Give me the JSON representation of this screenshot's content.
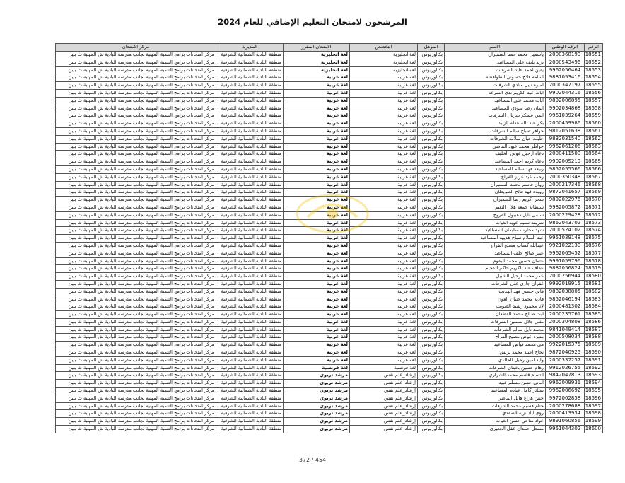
{
  "title": "المرشحون لامتحان التعليم الإضافي للعام 2024",
  "page_number": "372 / 454",
  "watermark": {
    "icon": "logo-watermark",
    "color": "#f2c200"
  },
  "table": {
    "headers": [
      "الرقم",
      "الرقم الوطني",
      "الاسم",
      "المؤهل",
      "التخصص",
      "الامتحان المقرر",
      "المديرية",
      "مركز الامتحان"
    ],
    "rows": [
      {
        "no": "18551",
        "nid": "2000368190",
        "name": "ياسمين محمد حمد السميران",
        "qual": "بكالوريوس",
        "spec": "لغة انجليزية",
        "exam": "لغة انجليزية",
        "dir": "منطقة البادية الشمالية الشرقية",
        "center": "مركز امتحانات برامج التنمية المهنية بجانب مدرسة البادية ش المهنية ث بنين"
      },
      {
        "no": "18552",
        "nid": "2000543496",
        "name": "يزيد نايف علي المساعيد",
        "qual": "بكالوريوس",
        "spec": "لغة انجليزية",
        "exam": "لغة انجليزية",
        "dir": "منطقة البادية الشمالية الشرقية",
        "center": "مركز امتحانات برامج التنمية المهنية بجانب مدرسة البادية ش المهنية ث بنين"
      },
      {
        "no": "18553",
        "nid": "9962056464",
        "name": "يقين احمد عايد الشرفات",
        "qual": "بكالوريوس",
        "spec": "لغة انجليزية",
        "exam": "لغة انجليزية",
        "dir": "منطقة البادية الشمالية الشرقية",
        "center": "مركز امتحانات برامج التنمية المهنية بجانب مدرسة البادية ش المهنية ث بنين"
      },
      {
        "no": "18554",
        "nid": "9881053416",
        "name": "اسامه فلاح حسوني الطواقشه",
        "qual": "بكالوريوس",
        "spec": "لغة عربية",
        "exam": "لغة عربية",
        "dir": "منطقة البادية الشمالية الشرقية",
        "center": "مركز امتحانات برامج التنمية المهنية بجانب مدرسة البادية ش المهنية ث بنين"
      },
      {
        "no": "18555",
        "nid": "2000347197",
        "name": "اميره نايل منادي الشرفات",
        "qual": "بكالوريوس",
        "spec": "لغة عربية",
        "exam": "لغة عربية",
        "dir": "منطقة البادية الشمالية الشرقية",
        "center": "مركز امتحانات برامج التنمية المهنية بجانب مدرسة البادية ش المهنية ث بنين"
      },
      {
        "no": "18556",
        "nid": "9902044316",
        "name": "ايات عبد الكريم ندى الشرعه",
        "qual": "بكالوريوس",
        "spec": "لغة عربية",
        "exam": "لغة عربية",
        "dir": "منطقة البادية الشمالية الشرقية",
        "center": "مركز امتحانات برامج التنمية المهنية بجانب مدرسة البادية ش المهنية ث بنين"
      },
      {
        "no": "18557",
        "nid": "9892006895",
        "name": "ايات محمد علي المساعيد",
        "qual": "بكالوريوس",
        "spec": "لغة عربية",
        "exam": "لغة عربية",
        "dir": "منطقة البادية الشمالية الشرقية",
        "center": "مركز امتحانات برامج التنمية المهنية بجانب مدرسة البادية ش المهنية ث بنين"
      },
      {
        "no": "18558",
        "nid": "9902034868",
        "name": "ايمان رضا سودي المساعيد",
        "qual": "بكالوريوس",
        "spec": "لغة عربية",
        "exam": "لغة عربية",
        "dir": "منطقة البادية الشمالية الشرقية",
        "center": "مركز امتحانات برامج التنمية المهنية بجانب مدرسة البادية ش المهنية ث بنين"
      },
      {
        "no": "18559",
        "nid": "9961039264",
        "name": "ايمن عسكر شربان الشرفات",
        "qual": "بكالوريوس",
        "spec": "لغة عربية",
        "exam": "لغة عربية",
        "dir": "منطقة البادية الشمالية الشرقية",
        "center": "مركز امتحانات برامج التنمية المهنية بجانب مدرسة البادية ش المهنية ث بنين"
      },
      {
        "no": "18560",
        "nid": "2000459986",
        "name": "بكر عبد الله عقله الزبيد",
        "qual": "بكالوريوس",
        "spec": "لغة عربية",
        "exam": "لغة عربية",
        "dir": "منطقة البادية الشمالية الشرقية",
        "center": "مركز امتحانات برامج التنمية المهنية بجانب مدرسة البادية ش المهنية ث بنين"
      },
      {
        "no": "18561",
        "nid": "9812051638",
        "name": "جواهر صباح سالم الشرفات",
        "qual": "بكالوريوس",
        "spec": "لغة عربية",
        "exam": "لغة عربية",
        "dir": "منطقة البادية الشمالية الشرقية",
        "center": "مركز امتحانات برامج التنمية المهنية بجانب مدرسة البادية ش المهنية ث بنين"
      },
      {
        "no": "18562",
        "nid": "9832031540",
        "name": "حليمه حيان سلامه الشرفات",
        "qual": "بكالوريوس",
        "spec": "لغة عربية",
        "exam": "لغة عربية",
        "dir": "منطقة البادية الشمالية الشرقية",
        "center": "مركز امتحانات برامج التنمية المهنية بجانب مدرسة البادية ش المهنية ث بنين"
      },
      {
        "no": "18563",
        "nid": "9962061206",
        "name": "خواطر محمد عبود الماضي",
        "qual": "بكالوريوس",
        "spec": "لغة عربية",
        "exam": "لغة عربية",
        "dir": "منطقة البادية الشمالية الشرقية",
        "center": "مركز امتحانات برامج التنمية المهنية بجانب مدرسة البادية ش المهنية ث بنين"
      },
      {
        "no": "18564",
        "nid": "2000411500",
        "name": "دعاء ارحيل عوض الخليف",
        "qual": "بكالوريوس",
        "spec": "لغة عربية",
        "exam": "لغة عربية",
        "dir": "منطقة البادية الشمالية الشرقية",
        "center": "مركز امتحانات برامج التنمية المهنية بجانب مدرسة البادية ش المهنية ث بنين"
      },
      {
        "no": "18565",
        "nid": "9902005219",
        "name": "دعاء كريم احمد المساعيد",
        "qual": "بكالوريوس",
        "spec": "لغة عربية",
        "exam": "لغة عربية",
        "dir": "منطقة البادية الشمالية الشرقية",
        "center": "مركز امتحانات برامج التنمية المهنية بجانب مدرسة البادية ش المهنية ث بنين"
      },
      {
        "no": "18566",
        "nid": "9852055566",
        "name": "ربيعه فهد سالم المساعيد",
        "qual": "بكالوريوس",
        "spec": "لغة عربية",
        "exam": "لغة عربية",
        "dir": "منطقة البادية الشمالية الشرقية",
        "center": "مركز امتحانات برامج التنمية المهنية بجانب مدرسة البادية ش المهنية ث بنين"
      },
      {
        "no": "18567",
        "nid": "2000350348",
        "name": "رحمه عيد عزيز الفراج",
        "qual": "بكالوريوس",
        "spec": "لغة عربية",
        "exam": "لغة عربية",
        "dir": "منطقة البادية الشمالية الشرقية",
        "center": "مركز امتحانات برامج التنمية المهنية بجانب مدرسة البادية ش المهنية ث بنين"
      },
      {
        "no": "18568",
        "nid": "2000217346",
        "name": "روان قاسم محمد السميران",
        "qual": "بكالوريوس",
        "spec": "لغة عربية",
        "exam": "لغة عربية",
        "dir": "منطقة البادية الشمالية الشرقية",
        "center": "مركز امتحانات برامج التنمية المهنية بجانب مدرسة البادية ش المهنية ث بنين"
      },
      {
        "no": "18569",
        "nid": "9872041657",
        "name": "رويده فهد فالح الطويطان",
        "qual": "بكالوريوس",
        "spec": "لغة عربية",
        "exam": "لغة عربية",
        "dir": "منطقة البادية الشمالية الشرقية",
        "center": "مركز امتحانات برامج التنمية المهنية بجانب مدرسة البادية ش المهنية ث بنين"
      },
      {
        "no": "18570",
        "nid": "9892022976",
        "name": "سحر اكريم رضا السميران",
        "qual": "بكالوريوس",
        "spec": "لغة عربية",
        "exam": "لغة عربية",
        "dir": "منطقة البادية الشمالية الشرقية",
        "center": "مركز امتحانات برامج التنمية المهنية بجانب مدرسة البادية ش المهنية ث بنين"
      },
      {
        "no": "18571",
        "nid": "9982005872",
        "name": "سلطانه جمعه هلال النعيم",
        "qual": "بكالوريوس",
        "spec": "لغة عربية",
        "exam": "لغة عربية",
        "dir": "منطقة البادية الشمالية الشرقية",
        "center": "مركز امتحانات برامج التنمية المهنية بجانب مدرسة البادية ش المهنية ث بنين"
      },
      {
        "no": "18572",
        "nid": "2000229428",
        "name": "سلمى نايل دعيبول الفروخ",
        "qual": "بكالوريوس",
        "spec": "لغة عربية",
        "exam": "لغة عربية",
        "dir": "منطقة البادية الشمالية الشرقية",
        "center": "مركز امتحانات برامج التنمية المهنية بجانب مدرسة البادية ش المهنية ث بنين"
      },
      {
        "no": "18573",
        "nid": "9862043702",
        "name": "شريفه سليم عويد الغيات",
        "qual": "بكالوريوس",
        "spec": "لغة عربية",
        "exam": "لغة عربية",
        "dir": "منطقة البادية الشمالية الشرقية",
        "center": "مركز امتحانات برامج التنمية المهنية بجانب مدرسة البادية ش المهنية ث بنين"
      },
      {
        "no": "18574",
        "nid": "2000524102",
        "name": "شهد محارب سليمان المساعيد",
        "qual": "بكالوريوس",
        "spec": "لغة عربية",
        "exam": "لغة عربية",
        "dir": "منطقة البادية الشمالية الشرقية",
        "center": "مركز امتحانات برامج التنمية المهنية بجانب مدرسة البادية ش المهنية ث بنين"
      },
      {
        "no": "18575",
        "nid": "9951039148",
        "name": "عبد السلام صباح هديهد المساعيد",
        "qual": "بكالوريوس",
        "spec": "لغة عربية",
        "exam": "لغة عربية",
        "dir": "منطقة البادية الشمالية الشرقية",
        "center": "مركز امتحانات برامج التنمية المهنية بجانب مدرسة البادية ش المهنية ث بنين"
      },
      {
        "no": "18576",
        "nid": "9921022130",
        "name": "عبدالله كساب مصبح الفراج",
        "qual": "بكالوريوس",
        "spec": "لغة عربية",
        "exam": "لغة عربية",
        "dir": "منطقة البادية الشمالية الشرقية",
        "center": "مركز امتحانات برامج التنمية المهنية بجانب مدرسة البادية ش المهنية ث بنين"
      },
      {
        "no": "18577",
        "nid": "9962065452",
        "name": "عبير صالح خلف المساعيد",
        "qual": "بكالوريوس",
        "spec": "لغة عربية",
        "exam": "لغة عربية",
        "dir": "منطقة البادية الشمالية الشرقية",
        "center": "مركز امتحانات برامج التنمية المهنية بجانب مدرسة البادية ش المهنية ث بنين"
      },
      {
        "no": "18578",
        "nid": "9991059796",
        "name": "عثمان حسين محمد البقوم",
        "qual": "بكالوريوس",
        "spec": "لغة عربية",
        "exam": "لغة عربية",
        "dir": "منطقة البادية الشمالية الشرقية",
        "center": "مركز امتحانات برامج التنمية المهنية بجانب مدرسة البادية ش المهنية ث بنين"
      },
      {
        "no": "18579",
        "nid": "9882056824",
        "name": "عفاف عبد الكريم حاكم الدحيم",
        "qual": "بكالوريوس",
        "spec": "لغة عربية",
        "exam": "لغة عربية",
        "dir": "منطقة البادية الشمالية الشرقية",
        "center": "مركز امتحانات برامج التنمية المهنية بجانب مدرسة البادية ش المهنية ث بنين"
      },
      {
        "no": "18580",
        "nid": "2000256944",
        "name": "عمر محمد ارحيل الشبيل",
        "qual": "بكالوريوس",
        "spec": "لغة عربية",
        "exam": "لغة عربية",
        "dir": "منطقة البادية الشمالية الشرقية",
        "center": "مركز امتحانات برامج التنمية المهنية بجانب مدرسة البادية ش المهنية ث بنين"
      },
      {
        "no": "18581",
        "nid": "9992019915",
        "name": "غفران جازي علي الشرفات",
        "qual": "بكالوريوس",
        "spec": "لغة عربية",
        "exam": "لغة عربية",
        "dir": "منطقة البادية الشمالية الشرقية",
        "center": "مركز امتحانات برامج التنمية المهنية بجانب مدرسة البادية ش المهنية ث بنين"
      },
      {
        "no": "18582",
        "nid": "9882038805",
        "name": "فاتن حسين فهد الهديب",
        "qual": "بكالوريوس",
        "spec": "لغة عربية",
        "exam": "لغة عربية",
        "dir": "منطقة البادية الشمالية الشرقية",
        "center": "مركز امتحانات برامج التنمية المهنية بجانب مدرسة البادية ش المهنية ث بنين"
      },
      {
        "no": "18583",
        "nid": "9852046194",
        "name": "فاديه محمد حنيان العون",
        "qual": "بكالوريوس",
        "spec": "لغة عربية",
        "exam": "لغة عربية",
        "dir": "منطقة البادية الشمالية الشرقية",
        "center": "مركز امتحانات برامج التنمية المهنية بجانب مدرسة البادية ش المهنية ث بنين"
      },
      {
        "no": "18584",
        "nid": "2000481302",
        "name": "لانا محمود رشيد الصويت",
        "qual": "بكالوريوس",
        "spec": "لغة عربية",
        "exam": "لغة عربية",
        "dir": "منطقة البادية الشمالية الشرقية",
        "center": "مركز امتحانات برامج التنمية المهنية بجانب مدرسة البادية ش المهنية ث بنين"
      },
      {
        "no": "18585",
        "nid": "2000235761",
        "name": "ليث صالح محمد القطعان",
        "qual": "بكالوريوس",
        "spec": "لغة عربية",
        "exam": "لغة عربية",
        "dir": "منطقة البادية الشمالية الشرقية",
        "center": "مركز امتحانات برامج التنمية المهنية بجانب مدرسة البادية ش المهنية ث بنين"
      },
      {
        "no": "18586",
        "nid": "2000304808",
        "name": "مثنى جلال سلمين الشرفات",
        "qual": "بكالوريوس",
        "spec": "لغة عربية",
        "exam": "لغة عربية",
        "dir": "منطقة البادية الشمالية الشرقية",
        "center": "مركز امتحانات برامج التنمية المهنية بجانب مدرسة البادية ش المهنية ث بنين"
      },
      {
        "no": "18587",
        "nid": "9841049414",
        "name": "محمد نايل سالم الشرفات",
        "qual": "بكالوريوس",
        "spec": "لغة عربية",
        "exam": "لغة عربية",
        "dir": "منطقة البادية الشمالية الشرقية",
        "center": "مركز امتحانات برامج التنمية المهنية بجانب مدرسة البادية ش المهنية ث بنين"
      },
      {
        "no": "18588",
        "nid": "2000508034",
        "name": "منيره عوض مصبح الفراج",
        "qual": "بكالوريوس",
        "spec": "لغة عربية",
        "exam": "لغة عربية",
        "dir": "منطقة البادية الشمالية الشرقية",
        "center": "مركز امتحانات برامج التنمية المهنية بجانب مدرسة البادية ش المهنية ث بنين"
      },
      {
        "no": "18589",
        "nid": "9922015375",
        "name": "مي محمد فياض المساعيد",
        "qual": "بكالوريوس",
        "spec": "لغة عربية",
        "exam": "لغة عربية",
        "dir": "منطقة البادية الشمالية الشرقية",
        "center": "مركز امتحانات برامج التنمية المهنية بجانب مدرسة البادية ش المهنية ث بنين"
      },
      {
        "no": "18590",
        "nid": "9872040925",
        "name": "نجاح اعبيد محمد بريش",
        "qual": "بكالوريوس",
        "spec": "لغة عربية",
        "exam": "لغة عربية",
        "dir": "منطقة البادية الشمالية الشرقية",
        "center": "مركز امتحانات برامج التنمية المهنية بجانب مدرسة البادية ش المهنية ث بنين"
      },
      {
        "no": "18591",
        "nid": "2000337257",
        "name": "وليد امين رحيل الخالدي",
        "qual": "بكالوريوس",
        "spec": "لغة عربية",
        "exam": "لغة عربية",
        "dir": "منطقة البادية الشمالية الشرقية",
        "center": "مركز امتحانات برامج التنمية المهنية بجانب مدرسة البادية ش المهنية ث بنين"
      },
      {
        "no": "18592",
        "nid": "9912026755",
        "name": "رهام حسين بخيتان الشرفات",
        "qual": "بكالوريوس",
        "spec": "لغة فرنسية",
        "exam": "لغة فرنسية",
        "dir": "منطقة البادية الشمالية الشرقية",
        "center": "مركز امتحانات برامج التنمية المهنية بجانب مدرسة البادية ش المهنية ث بنين"
      },
      {
        "no": "18593",
        "nid": "9842047813",
        "name": "ابتسام قاسم محمد الشراري",
        "qual": "بكالوريوس",
        "spec": "إرشاد_علم نفس",
        "exam": "مرشد تربوي",
        "dir": "منطقة البادية الشمالية الشرقية",
        "center": "مركز امتحانات برامج التنمية المهنية بجانب مدرسة البادية ش المهنية ث بنين"
      },
      {
        "no": "18594",
        "nid": "9962009931",
        "name": "اماني حسن مسلم عبيد",
        "qual": "بكالوريوس",
        "spec": "إرشاد_علم نفس",
        "exam": "مرشد تربوي",
        "dir": "منطقة البادية الشمالية الشرقية",
        "center": "مركز امتحانات برامج التنمية المهنية بجانب مدرسة البادية ش المهنية ث بنين"
      },
      {
        "no": "18595",
        "nid": "9962006692",
        "name": "بشائر كامل عياده المساعيد",
        "qual": "بكالوريوس",
        "spec": "إرشاد_علم نفس",
        "exam": "مرشد تربوي",
        "dir": "منطقة البادية الشمالية الشرقية",
        "center": "مركز امتحانات برامج التنمية المهنية بجانب مدرسة البادية ش المهنية ث بنين"
      },
      {
        "no": "18596",
        "nid": "9972002858",
        "name": "حنين هزاع هايل الماضي",
        "qual": "بكالوريوس",
        "spec": "إرشاد_علم نفس",
        "exam": "مرشد تربوي",
        "dir": "منطقة البادية الشمالية الشرقية",
        "center": "مركز امتحانات برامج التنمية المهنية بجانب مدرسة البادية ش المهنية ث بنين"
      },
      {
        "no": "18597",
        "nid": "2000278688",
        "name": "ختام قسيم محمد الشرفات",
        "qual": "بكالوريوس",
        "spec": "إرشاد_علم نفس",
        "exam": "مرشد تربوي",
        "dir": "منطقة البادية الشمالية الشرقية",
        "center": "مركز امتحانات برامج التنمية المهنية بجانب مدرسة البادية ش المهنية ث بنين"
      },
      {
        "no": "18598",
        "nid": "2000413934",
        "name": "رؤى اياد نزيه الصفدي",
        "qual": "بكالوريوس",
        "spec": "إرشاد_علم نفس",
        "exam": "مرشد تربوي",
        "dir": "منطقة البادية الشمالية الشرقية",
        "center": "مركز امتحانات برامج التنمية المهنية بجانب مدرسة البادية ش المهنية ث بنين"
      },
      {
        "no": "18599",
        "nid": "9891060856",
        "name": "عواد مناحي حسن الغيات",
        "qual": "بكالوريوس",
        "spec": "إرشاد_علم نفس",
        "exam": "مرشد تربوي",
        "dir": "منطقة البادية الشمالية الشرقية",
        "center": "مركز امتحانات برامج التنمية المهنية بجانب مدرسة البادية ش المهنية ث بنين"
      },
      {
        "no": "18600",
        "nid": "9951044302",
        "name": "مشعل حمدان عقل الجعيري",
        "qual": "بكالوريوس",
        "spec": "إرشاد_علم نفس",
        "exam": "مرشد تربوي",
        "dir": "منطقة البادية الشمالية الشرقية",
        "center": "مركز امتحانات برامج التنمية المهنية بجانب مدرسة البادية ش المهنية ث بنين"
      }
    ]
  }
}
